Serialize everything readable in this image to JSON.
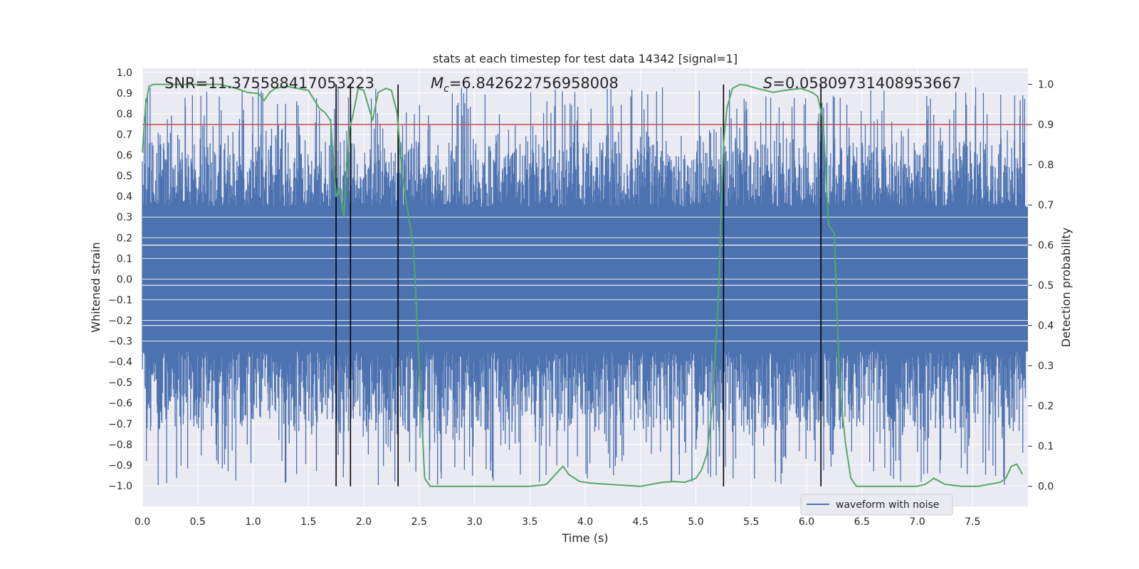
{
  "chart_data": {
    "type": "line",
    "title": "stats at each timestep for test data 14342 [signal=1]",
    "xlabel": "Time (s)",
    "ylabel": "Whitened strain",
    "y2label": "Detection probability",
    "xlim": [
      0.0,
      8.0
    ],
    "ylim": [
      -1.1,
      1.02
    ],
    "y2lim": [
      -0.05,
      1.04
    ],
    "x_ticks": [
      0.0,
      0.5,
      1.0,
      1.5,
      2.0,
      2.5,
      3.0,
      3.5,
      4.0,
      4.5,
      5.0,
      5.5,
      6.0,
      6.5,
      7.0,
      7.5
    ],
    "x_tick_labels": [
      "0.0",
      "0.5",
      "1.0",
      "1.5",
      "2.0",
      "2.5",
      "3.0",
      "3.5",
      "4.0",
      "4.5",
      "5.0",
      "5.5",
      "6.0",
      "6.5",
      "7.0",
      "7.5"
    ],
    "y_ticks": [
      1.0,
      0.9,
      0.8,
      0.7,
      0.6,
      0.5,
      0.4,
      0.3,
      0.2,
      0.1,
      0.0,
      -0.1,
      -0.2,
      -0.3,
      -0.4,
      -0.5,
      -0.6,
      -0.7,
      -0.8,
      -0.9,
      -1.0
    ],
    "y_tick_labels": [
      "1.0",
      "0.9",
      "0.8",
      "0.7",
      "0.6",
      "0.5",
      "0.4",
      "0.3",
      "0.2",
      "0.1",
      "0.0",
      "−0.1",
      "−0.2",
      "−0.3",
      "−0.4",
      "−0.5",
      "−0.6",
      "−0.7",
      "−0.8",
      "−0.9",
      "−1.0"
    ],
    "y2_ticks": [
      1.0,
      0.9,
      0.8,
      0.7,
      0.6,
      0.5,
      0.4,
      0.3,
      0.2,
      0.1,
      0.0
    ],
    "y2_tick_labels": [
      "1.0",
      "0.9",
      "0.8",
      "0.7",
      "0.6",
      "0.5",
      "0.4",
      "0.3",
      "0.2",
      "0.1",
      "0.0"
    ],
    "annotations": {
      "snr": "SNR=11.375588417053223",
      "mc_symbol": "M",
      "mc_sub": "c",
      "mc_value": "=6.842622756958008",
      "s_symbol": "S",
      "s_value": "=0.05809731408953667"
    },
    "legend": {
      "label": "waveform with noise",
      "placement": "lower-right"
    },
    "grid": true,
    "colors": {
      "waveform": "#4c72b0",
      "probability": "#55a868",
      "threshold": "#c44e52",
      "vlines": "#000000",
      "background": "#eaeaf2",
      "grid": "#ffffff"
    },
    "series": [
      {
        "name": "waveform with noise",
        "axis": "left",
        "note_envelope": {
          "noise_floor_abs": 0.35,
          "peak_max": 0.93,
          "peak_min": -1.0
        }
      },
      {
        "axis": "right",
        "x": [
          0.0,
          0.03,
          0.06,
          0.1,
          0.2,
          0.3,
          0.5,
          0.7,
          0.85,
          0.95,
          1.05,
          1.1,
          1.15,
          1.2,
          1.3,
          1.4,
          1.5,
          1.6,
          1.65,
          1.7,
          1.75,
          1.78,
          1.82,
          1.87,
          1.9,
          1.95,
          2.0,
          2.08,
          2.13,
          2.2,
          2.25,
          2.3,
          2.35,
          2.45,
          2.55,
          2.6,
          2.65,
          2.75,
          3.0,
          3.25,
          3.5,
          3.6,
          3.65,
          3.7,
          3.75,
          3.8,
          3.85,
          3.95,
          4.05,
          4.2,
          4.5,
          4.6,
          4.7,
          4.8,
          4.9,
          5.0,
          5.05,
          5.1,
          5.15,
          5.2,
          5.25,
          5.28,
          5.33,
          5.4,
          5.45,
          5.55,
          5.7,
          5.8,
          5.95,
          6.05,
          6.1,
          6.15,
          6.2,
          6.25,
          6.3,
          6.35,
          6.4,
          6.45,
          6.55,
          6.8,
          7.0,
          7.07,
          7.1,
          7.15,
          7.25,
          7.4,
          7.55,
          7.65,
          7.75,
          7.8,
          7.85,
          7.9,
          7.95
        ],
        "values": [
          0.83,
          0.95,
          0.995,
          1.0,
          1.0,
          1.0,
          1.0,
          1.0,
          0.99,
          0.98,
          0.977,
          0.96,
          0.98,
          0.99,
          0.995,
          0.99,
          0.985,
          0.94,
          0.93,
          0.91,
          0.72,
          0.74,
          0.67,
          0.89,
          0.92,
          0.99,
          0.985,
          0.91,
          0.98,
          0.99,
          0.985,
          0.93,
          0.77,
          0.59,
          0.02,
          0.0,
          0.0,
          0.0,
          0.0,
          0.0,
          0.0,
          0.003,
          0.005,
          0.02,
          0.035,
          0.05,
          0.03,
          0.012,
          0.008,
          0.005,
          0.0,
          0.005,
          0.01,
          0.012,
          0.01,
          0.02,
          0.04,
          0.08,
          0.2,
          0.45,
          0.85,
          0.94,
          0.99,
          1.0,
          0.998,
          0.99,
          0.98,
          0.985,
          0.99,
          0.98,
          0.97,
          0.91,
          0.65,
          0.63,
          0.25,
          0.11,
          0.02,
          0.0,
          0.0,
          0.0,
          0.0,
          0.005,
          0.01,
          0.02,
          0.005,
          0.0,
          0.0,
          0.005,
          0.01,
          0.02,
          0.05,
          0.055,
          0.03
        ]
      }
    ],
    "threshold_y2": 0.9,
    "vertical_lines_x": [
      1.75,
      1.88,
      2.31,
      5.25,
      6.13
    ]
  }
}
